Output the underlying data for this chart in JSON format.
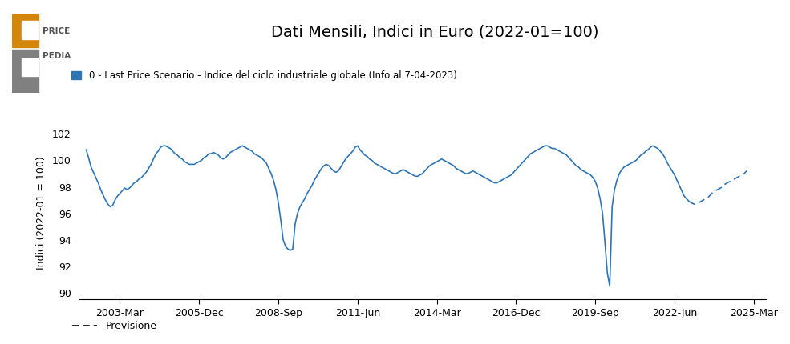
{
  "title": "Dati Mensili, Indici in Euro (2022-01=100)",
  "ylabel": "Indici (2022-01 = 100)",
  "legend_label": "0 - Last Price Scenario - Indice del ciclo industriale globale (Info al 7-04-2023)",
  "forecast_label": "Previsione",
  "line_color": "#2e75b6",
  "background_color": "#ffffff",
  "ylim": [
    89.5,
    102.5
  ],
  "yticks": [
    90,
    92,
    94,
    96,
    98,
    100,
    102
  ],
  "xlim_left": 2001.75,
  "xlim_right": 2025.6,
  "xtick_positions": [
    2003.167,
    2005.917,
    2008.667,
    2011.417,
    2014.167,
    2016.917,
    2019.667,
    2022.417,
    2025.167
  ],
  "xtick_labels": [
    "2003-Mar",
    "2005-Dec",
    "2008-Sep",
    "2011-Jun",
    "2014-Mar",
    "2016-Dec",
    "2019-Sep",
    "2022-Jun",
    "2025-Mar"
  ],
  "solid_data": [
    [
      2002.0,
      100.8
    ],
    [
      2002.083,
      100.2
    ],
    [
      2002.167,
      99.5
    ],
    [
      2002.25,
      99.1
    ],
    [
      2002.333,
      98.7
    ],
    [
      2002.417,
      98.3
    ],
    [
      2002.5,
      97.8
    ],
    [
      2002.583,
      97.4
    ],
    [
      2002.667,
      97.0
    ],
    [
      2002.75,
      96.7
    ],
    [
      2002.833,
      96.5
    ],
    [
      2002.917,
      96.6
    ],
    [
      2003.0,
      97.0
    ],
    [
      2003.083,
      97.3
    ],
    [
      2003.167,
      97.5
    ],
    [
      2003.25,
      97.7
    ],
    [
      2003.333,
      97.9
    ],
    [
      2003.417,
      97.8
    ],
    [
      2003.5,
      97.9
    ],
    [
      2003.583,
      98.1
    ],
    [
      2003.667,
      98.3
    ],
    [
      2003.75,
      98.4
    ],
    [
      2003.833,
      98.6
    ],
    [
      2003.917,
      98.7
    ],
    [
      2004.0,
      98.9
    ],
    [
      2004.083,
      99.1
    ],
    [
      2004.167,
      99.4
    ],
    [
      2004.25,
      99.7
    ],
    [
      2004.333,
      100.1
    ],
    [
      2004.417,
      100.5
    ],
    [
      2004.5,
      100.7
    ],
    [
      2004.583,
      101.0
    ],
    [
      2004.667,
      101.1
    ],
    [
      2004.75,
      101.1
    ],
    [
      2004.833,
      101.0
    ],
    [
      2004.917,
      100.9
    ],
    [
      2005.0,
      100.7
    ],
    [
      2005.083,
      100.5
    ],
    [
      2005.167,
      100.4
    ],
    [
      2005.25,
      100.2
    ],
    [
      2005.333,
      100.1
    ],
    [
      2005.417,
      99.9
    ],
    [
      2005.5,
      99.8
    ],
    [
      2005.583,
      99.7
    ],
    [
      2005.667,
      99.7
    ],
    [
      2005.75,
      99.7
    ],
    [
      2005.833,
      99.8
    ],
    [
      2005.917,
      99.9
    ],
    [
      2006.0,
      100.0
    ],
    [
      2006.083,
      100.2
    ],
    [
      2006.167,
      100.3
    ],
    [
      2006.25,
      100.5
    ],
    [
      2006.333,
      100.5
    ],
    [
      2006.417,
      100.6
    ],
    [
      2006.5,
      100.5
    ],
    [
      2006.583,
      100.4
    ],
    [
      2006.667,
      100.2
    ],
    [
      2006.75,
      100.1
    ],
    [
      2006.833,
      100.2
    ],
    [
      2006.917,
      100.4
    ],
    [
      2007.0,
      100.6
    ],
    [
      2007.083,
      100.7
    ],
    [
      2007.167,
      100.8
    ],
    [
      2007.25,
      100.9
    ],
    [
      2007.333,
      101.0
    ],
    [
      2007.417,
      101.1
    ],
    [
      2007.5,
      101.0
    ],
    [
      2007.583,
      100.9
    ],
    [
      2007.667,
      100.8
    ],
    [
      2007.75,
      100.7
    ],
    [
      2007.833,
      100.5
    ],
    [
      2007.917,
      100.4
    ],
    [
      2008.0,
      100.3
    ],
    [
      2008.083,
      100.2
    ],
    [
      2008.167,
      100.0
    ],
    [
      2008.25,
      99.8
    ],
    [
      2008.333,
      99.4
    ],
    [
      2008.417,
      99.0
    ],
    [
      2008.5,
      98.5
    ],
    [
      2008.583,
      97.8
    ],
    [
      2008.667,
      96.8
    ],
    [
      2008.75,
      95.5
    ],
    [
      2008.833,
      94.0
    ],
    [
      2008.917,
      93.5
    ],
    [
      2009.0,
      93.3
    ],
    [
      2009.083,
      93.2
    ],
    [
      2009.167,
      93.3
    ],
    [
      2009.25,
      95.2
    ],
    [
      2009.333,
      96.0
    ],
    [
      2009.417,
      96.5
    ],
    [
      2009.5,
      96.8
    ],
    [
      2009.583,
      97.1
    ],
    [
      2009.667,
      97.5
    ],
    [
      2009.75,
      97.8
    ],
    [
      2009.833,
      98.1
    ],
    [
      2009.917,
      98.5
    ],
    [
      2010.0,
      98.8
    ],
    [
      2010.083,
      99.1
    ],
    [
      2010.167,
      99.4
    ],
    [
      2010.25,
      99.6
    ],
    [
      2010.333,
      99.7
    ],
    [
      2010.417,
      99.6
    ],
    [
      2010.5,
      99.4
    ],
    [
      2010.583,
      99.2
    ],
    [
      2010.667,
      99.1
    ],
    [
      2010.75,
      99.2
    ],
    [
      2010.833,
      99.5
    ],
    [
      2010.917,
      99.8
    ],
    [
      2011.0,
      100.1
    ],
    [
      2011.083,
      100.3
    ],
    [
      2011.167,
      100.5
    ],
    [
      2011.25,
      100.7
    ],
    [
      2011.333,
      101.0
    ],
    [
      2011.417,
      101.1
    ],
    [
      2011.5,
      100.8
    ],
    [
      2011.583,
      100.6
    ],
    [
      2011.667,
      100.4
    ],
    [
      2011.75,
      100.3
    ],
    [
      2011.833,
      100.1
    ],
    [
      2011.917,
      100.0
    ],
    [
      2012.0,
      99.8
    ],
    [
      2012.083,
      99.7
    ],
    [
      2012.167,
      99.6
    ],
    [
      2012.25,
      99.5
    ],
    [
      2012.333,
      99.4
    ],
    [
      2012.417,
      99.3
    ],
    [
      2012.5,
      99.2
    ],
    [
      2012.583,
      99.1
    ],
    [
      2012.667,
      99.0
    ],
    [
      2012.75,
      99.0
    ],
    [
      2012.833,
      99.1
    ],
    [
      2012.917,
      99.2
    ],
    [
      2013.0,
      99.3
    ],
    [
      2013.083,
      99.2
    ],
    [
      2013.167,
      99.1
    ],
    [
      2013.25,
      99.0
    ],
    [
      2013.333,
      98.9
    ],
    [
      2013.417,
      98.8
    ],
    [
      2013.5,
      98.8
    ],
    [
      2013.583,
      98.9
    ],
    [
      2013.667,
      99.0
    ],
    [
      2013.75,
      99.2
    ],
    [
      2013.833,
      99.4
    ],
    [
      2013.917,
      99.6
    ],
    [
      2014.0,
      99.7
    ],
    [
      2014.083,
      99.8
    ],
    [
      2014.167,
      99.9
    ],
    [
      2014.25,
      100.0
    ],
    [
      2014.333,
      100.1
    ],
    [
      2014.417,
      100.0
    ],
    [
      2014.5,
      99.9
    ],
    [
      2014.583,
      99.8
    ],
    [
      2014.667,
      99.7
    ],
    [
      2014.75,
      99.6
    ],
    [
      2014.833,
      99.4
    ],
    [
      2014.917,
      99.3
    ],
    [
      2015.0,
      99.2
    ],
    [
      2015.083,
      99.1
    ],
    [
      2015.167,
      99.0
    ],
    [
      2015.25,
      99.0
    ],
    [
      2015.333,
      99.1
    ],
    [
      2015.417,
      99.2
    ],
    [
      2015.5,
      99.1
    ],
    [
      2015.583,
      99.0
    ],
    [
      2015.667,
      98.9
    ],
    [
      2015.75,
      98.8
    ],
    [
      2015.833,
      98.7
    ],
    [
      2015.917,
      98.6
    ],
    [
      2016.0,
      98.5
    ],
    [
      2016.083,
      98.4
    ],
    [
      2016.167,
      98.3
    ],
    [
      2016.25,
      98.3
    ],
    [
      2016.333,
      98.4
    ],
    [
      2016.417,
      98.5
    ],
    [
      2016.5,
      98.6
    ],
    [
      2016.583,
      98.7
    ],
    [
      2016.667,
      98.8
    ],
    [
      2016.75,
      98.9
    ],
    [
      2016.833,
      99.1
    ],
    [
      2016.917,
      99.3
    ],
    [
      2017.0,
      99.5
    ],
    [
      2017.083,
      99.7
    ],
    [
      2017.167,
      99.9
    ],
    [
      2017.25,
      100.1
    ],
    [
      2017.333,
      100.3
    ],
    [
      2017.417,
      100.5
    ],
    [
      2017.5,
      100.6
    ],
    [
      2017.583,
      100.7
    ],
    [
      2017.667,
      100.8
    ],
    [
      2017.75,
      100.9
    ],
    [
      2017.833,
      101.0
    ],
    [
      2017.917,
      101.1
    ],
    [
      2018.0,
      101.1
    ],
    [
      2018.083,
      101.0
    ],
    [
      2018.167,
      100.9
    ],
    [
      2018.25,
      100.9
    ],
    [
      2018.333,
      100.8
    ],
    [
      2018.417,
      100.7
    ],
    [
      2018.5,
      100.6
    ],
    [
      2018.583,
      100.5
    ],
    [
      2018.667,
      100.4
    ],
    [
      2018.75,
      100.2
    ],
    [
      2018.833,
      100.0
    ],
    [
      2018.917,
      99.8
    ],
    [
      2019.0,
      99.6
    ],
    [
      2019.083,
      99.5
    ],
    [
      2019.167,
      99.3
    ],
    [
      2019.25,
      99.2
    ],
    [
      2019.333,
      99.1
    ],
    [
      2019.417,
      99.0
    ],
    [
      2019.5,
      98.9
    ],
    [
      2019.583,
      98.7
    ],
    [
      2019.667,
      98.4
    ],
    [
      2019.75,
      97.9
    ],
    [
      2019.833,
      97.1
    ],
    [
      2019.917,
      96.0
    ],
    [
      2020.0,
      93.8
    ],
    [
      2020.083,
      91.5
    ],
    [
      2020.167,
      90.5
    ],
    [
      2020.25,
      96.5
    ],
    [
      2020.333,
      97.8
    ],
    [
      2020.417,
      98.5
    ],
    [
      2020.5,
      99.0
    ],
    [
      2020.583,
      99.3
    ],
    [
      2020.667,
      99.5
    ],
    [
      2020.75,
      99.6
    ],
    [
      2020.833,
      99.7
    ],
    [
      2020.917,
      99.8
    ],
    [
      2021.0,
      99.9
    ],
    [
      2021.083,
      100.0
    ],
    [
      2021.167,
      100.2
    ],
    [
      2021.25,
      100.4
    ],
    [
      2021.333,
      100.5
    ],
    [
      2021.417,
      100.7
    ],
    [
      2021.5,
      100.8
    ],
    [
      2021.583,
      101.0
    ],
    [
      2021.667,
      101.1
    ],
    [
      2021.75,
      101.0
    ],
    [
      2021.833,
      100.9
    ],
    [
      2021.917,
      100.7
    ],
    [
      2022.0,
      100.5
    ],
    [
      2022.083,
      100.2
    ],
    [
      2022.167,
      99.8
    ],
    [
      2022.25,
      99.5
    ],
    [
      2022.333,
      99.2
    ],
    [
      2022.417,
      98.9
    ],
    [
      2022.5,
      98.5
    ],
    [
      2022.583,
      98.1
    ],
    [
      2022.667,
      97.7
    ],
    [
      2022.75,
      97.3
    ],
    [
      2022.833,
      97.1
    ],
    [
      2022.917,
      96.9
    ]
  ],
  "dashed_data": [
    [
      2022.917,
      96.9
    ],
    [
      2023.0,
      96.8
    ],
    [
      2023.083,
      96.7
    ],
    [
      2023.167,
      96.7
    ],
    [
      2023.25,
      96.8
    ],
    [
      2023.333,
      96.9
    ],
    [
      2023.417,
      97.0
    ],
    [
      2023.5,
      97.1
    ],
    [
      2023.583,
      97.2
    ],
    [
      2023.667,
      97.4
    ],
    [
      2023.75,
      97.6
    ],
    [
      2023.833,
      97.7
    ],
    [
      2023.917,
      97.8
    ],
    [
      2024.0,
      97.9
    ],
    [
      2024.083,
      98.0
    ],
    [
      2024.167,
      98.2
    ],
    [
      2024.25,
      98.3
    ],
    [
      2024.333,
      98.4
    ],
    [
      2024.417,
      98.5
    ],
    [
      2024.5,
      98.6
    ],
    [
      2024.583,
      98.7
    ],
    [
      2024.667,
      98.8
    ],
    [
      2024.75,
      98.9
    ],
    [
      2024.833,
      99.0
    ],
    [
      2024.917,
      99.2
    ]
  ],
  "logo_orange_color": "#d4860b",
  "logo_gray_color": "#808080"
}
